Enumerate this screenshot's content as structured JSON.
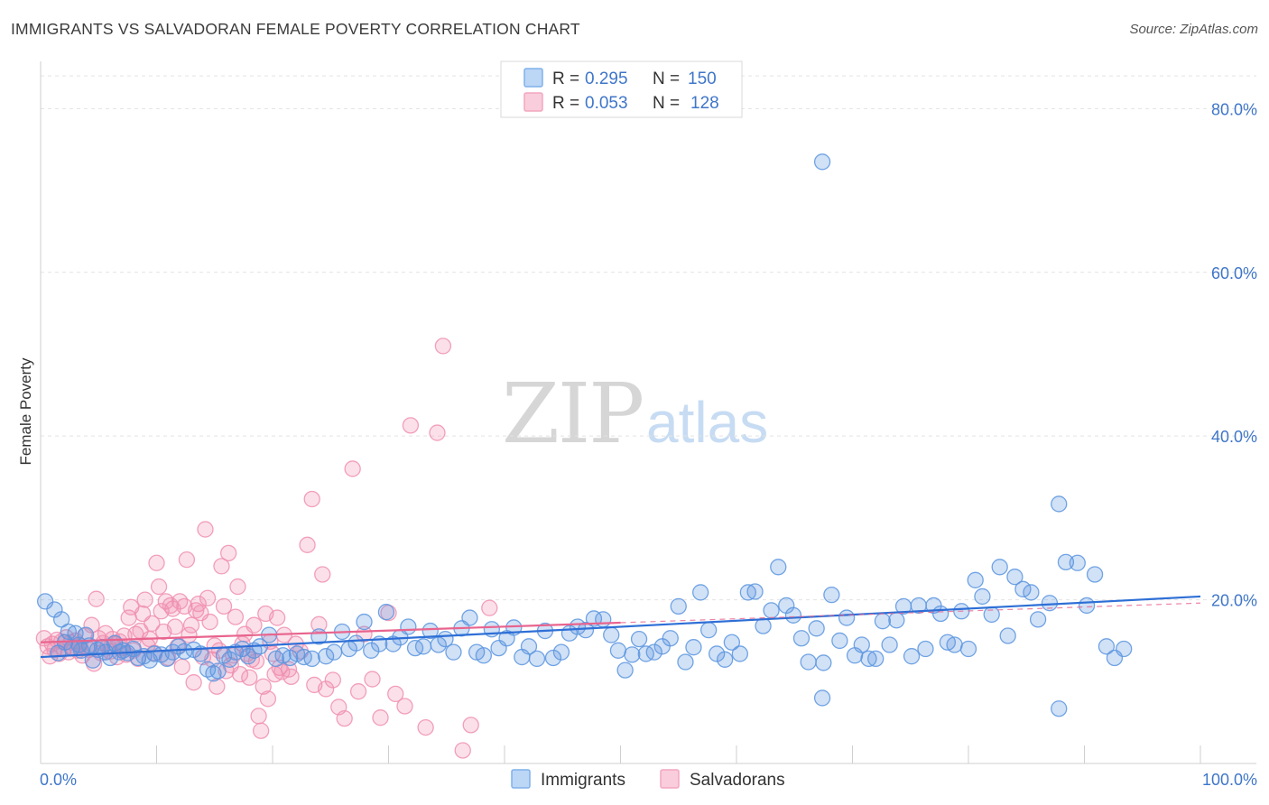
{
  "header": {
    "title": "IMMIGRANTS VS SALVADORAN FEMALE POVERTY CORRELATION CHART",
    "source": "Source: ZipAtlas.com"
  },
  "watermark": {
    "zip": "ZIP",
    "atlas": "atlas"
  },
  "legend": {
    "rows": [
      {
        "r_label": "R =",
        "r_value": "0.295",
        "n_label": "N =",
        "n_value": "150",
        "color": "#7fb1ea"
      },
      {
        "r_label": "R =",
        "r_value": "0.053",
        "n_label": "N =",
        "n_value": "128",
        "color": "#f4a6bf"
      }
    ]
  },
  "bottom_legend": {
    "items": [
      {
        "label": "Immigrants",
        "color": "#7fb1ea"
      },
      {
        "label": "Salvadorans",
        "color": "#f4a6bf"
      }
    ]
  },
  "colors": {
    "blue": "#5b95df",
    "pink": "#f08fb0",
    "blue_line": "#2e6fd6",
    "pink_line": "#e8648e",
    "grid": "#e3e3e3",
    "tick_text": "#3f76c9"
  },
  "chart_data": {
    "type": "scatter",
    "title": "IMMIGRANTS VS SALVADORAN FEMALE POVERTY CORRELATION CHART",
    "xlabel": "",
    "ylabel": "Female Poverty",
    "xlim": [
      0,
      100
    ],
    "ylim": [
      0,
      85
    ],
    "x_tick_labels": [
      "0.0%",
      "100.0%"
    ],
    "y_ticks": [
      20,
      40,
      60,
      80
    ],
    "y_tick_labels": [
      "20.0%",
      "40.0%",
      "60.0%",
      "80.0%"
    ],
    "grid": true,
    "legend_position": "top-center",
    "series": [
      {
        "name": "Immigrants",
        "color": "#5b95df",
        "r": 0.295,
        "n": 150,
        "trend": {
          "x": [
            0,
            100
          ],
          "y": [
            13.0,
            20.4
          ]
        },
        "points": [
          [
            0.4,
            19.8
          ],
          [
            1.2,
            18.8
          ],
          [
            1.5,
            13.5
          ],
          [
            1.8,
            17.6
          ],
          [
            2.1,
            14.8
          ],
          [
            2.4,
            16.1
          ],
          [
            2.7,
            14.1
          ],
          [
            3.0,
            15.9
          ],
          [
            3.3,
            14.5
          ],
          [
            3.5,
            13.8
          ],
          [
            3.9,
            15.7
          ],
          [
            4.2,
            14.4
          ],
          [
            4.5,
            12.6
          ],
          [
            4.9,
            13.9
          ],
          [
            5.3,
            14.2
          ],
          [
            5.6,
            13.6
          ],
          [
            6.0,
            12.9
          ],
          [
            6.4,
            14.7
          ],
          [
            6.8,
            13.6
          ],
          [
            7.1,
            13.8
          ],
          [
            7.5,
            13.5
          ],
          [
            8.0,
            14.0
          ],
          [
            8.4,
            12.9
          ],
          [
            8.9,
            13.1
          ],
          [
            9.4,
            12.6
          ],
          [
            9.8,
            13.4
          ],
          [
            10.4,
            13.3
          ],
          [
            10.9,
            12.8
          ],
          [
            11.4,
            13.6
          ],
          [
            11.9,
            14.3
          ],
          [
            12.4,
            13.7
          ],
          [
            13.2,
            13.9
          ],
          [
            13.8,
            13.4
          ],
          [
            14.4,
            11.5
          ],
          [
            14.9,
            11.0
          ],
          [
            15.3,
            11.3
          ],
          [
            15.8,
            13.2
          ],
          [
            16.3,
            12.7
          ],
          [
            16.8,
            13.6
          ],
          [
            17.4,
            14.0
          ],
          [
            17.9,
            13.1
          ],
          [
            18.4,
            13.8
          ],
          [
            18.9,
            14.3
          ],
          [
            19.7,
            15.7
          ],
          [
            20.3,
            12.8
          ],
          [
            20.9,
            13.2
          ],
          [
            21.5,
            12.9
          ],
          [
            22.1,
            13.4
          ],
          [
            22.7,
            13.0
          ],
          [
            23.4,
            12.8
          ],
          [
            24.0,
            15.5
          ],
          [
            24.6,
            13.1
          ],
          [
            25.3,
            13.6
          ],
          [
            26.0,
            16.1
          ],
          [
            26.6,
            14.0
          ],
          [
            27.2,
            14.7
          ],
          [
            27.9,
            17.3
          ],
          [
            28.5,
            13.8
          ],
          [
            29.2,
            14.6
          ],
          [
            29.8,
            18.5
          ],
          [
            30.4,
            14.6
          ],
          [
            31.0,
            15.4
          ],
          [
            31.7,
            16.7
          ],
          [
            32.3,
            14.1
          ],
          [
            33.0,
            14.3
          ],
          [
            33.6,
            16.2
          ],
          [
            34.3,
            14.5
          ],
          [
            34.9,
            15.2
          ],
          [
            35.6,
            13.6
          ],
          [
            36.3,
            16.5
          ],
          [
            37.0,
            17.8
          ],
          [
            37.6,
            13.6
          ],
          [
            38.2,
            13.2
          ],
          [
            38.9,
            16.4
          ],
          [
            39.5,
            14.1
          ],
          [
            40.2,
            15.3
          ],
          [
            40.8,
            16.6
          ],
          [
            41.5,
            13.0
          ],
          [
            42.1,
            14.3
          ],
          [
            42.8,
            12.8
          ],
          [
            43.5,
            16.2
          ],
          [
            44.2,
            12.9
          ],
          [
            44.9,
            13.6
          ],
          [
            45.6,
            15.9
          ],
          [
            46.3,
            16.7
          ],
          [
            47.0,
            16.3
          ],
          [
            47.7,
            17.7
          ],
          [
            48.5,
            17.6
          ],
          [
            49.2,
            15.7
          ],
          [
            49.8,
            13.8
          ],
          [
            50.4,
            11.4
          ],
          [
            51.0,
            13.3
          ],
          [
            51.6,
            15.2
          ],
          [
            52.2,
            13.4
          ],
          [
            52.9,
            13.6
          ],
          [
            53.6,
            14.3
          ],
          [
            54.3,
            15.3
          ],
          [
            55.0,
            19.2
          ],
          [
            55.6,
            12.4
          ],
          [
            56.3,
            14.2
          ],
          [
            56.9,
            20.9
          ],
          [
            57.6,
            16.3
          ],
          [
            58.3,
            13.4
          ],
          [
            59.0,
            12.7
          ],
          [
            59.6,
            14.8
          ],
          [
            60.3,
            13.4
          ],
          [
            61.0,
            20.9
          ],
          [
            61.6,
            21.0
          ],
          [
            62.3,
            16.8
          ],
          [
            63.0,
            18.7
          ],
          [
            63.6,
            24.0
          ],
          [
            64.3,
            19.3
          ],
          [
            64.9,
            18.1
          ],
          [
            65.6,
            15.3
          ],
          [
            66.2,
            12.4
          ],
          [
            66.9,
            16.5
          ],
          [
            67.5,
            12.3
          ],
          [
            68.2,
            20.6
          ],
          [
            68.9,
            15.0
          ],
          [
            69.5,
            17.8
          ],
          [
            70.2,
            13.2
          ],
          [
            70.8,
            14.5
          ],
          [
            71.4,
            12.8
          ],
          [
            72.0,
            12.8
          ],
          [
            72.6,
            17.4
          ],
          [
            73.2,
            14.5
          ],
          [
            73.8,
            17.5
          ],
          [
            74.4,
            19.2
          ],
          [
            75.1,
            13.1
          ],
          [
            75.7,
            19.3
          ],
          [
            76.3,
            14.0
          ],
          [
            77.0,
            19.3
          ],
          [
            77.6,
            18.3
          ],
          [
            78.2,
            14.8
          ],
          [
            78.8,
            14.5
          ],
          [
            79.4,
            18.6
          ],
          [
            80.0,
            14.0
          ],
          [
            80.6,
            22.4
          ],
          [
            81.2,
            20.4
          ],
          [
            82.0,
            18.2
          ],
          [
            82.7,
            24.0
          ],
          [
            83.4,
            15.6
          ],
          [
            84.0,
            22.8
          ],
          [
            84.7,
            21.3
          ],
          [
            85.4,
            20.9
          ],
          [
            86.0,
            17.6
          ],
          [
            87.0,
            19.6
          ],
          [
            87.8,
            31.7
          ],
          [
            88.4,
            24.6
          ],
          [
            89.4,
            24.5
          ],
          [
            90.2,
            19.3
          ],
          [
            90.9,
            23.1
          ],
          [
            91.9,
            14.3
          ],
          [
            92.6,
            12.9
          ],
          [
            93.4,
            14.0
          ],
          [
            67.4,
            8.0
          ],
          [
            87.8,
            6.7
          ],
          [
            67.4,
            73.5
          ]
        ]
      },
      {
        "name": "Salvadorans",
        "color": "#f08fb0",
        "r": 0.053,
        "n": 128,
        "trend": {
          "x": [
            0,
            50
          ],
          "y": [
            14.8,
            17.2
          ]
        },
        "trend_extension": {
          "x": [
            50,
            100
          ],
          "y": [
            17.2,
            19.6
          ]
        },
        "points": [
          [
            0.3,
            15.3
          ],
          [
            0.6,
            14.3
          ],
          [
            0.8,
            13.1
          ],
          [
            1.0,
            14.6
          ],
          [
            1.2,
            13.9
          ],
          [
            1.4,
            15.1
          ],
          [
            1.6,
            13.4
          ],
          [
            1.8,
            14.9
          ],
          [
            2.0,
            14.0
          ],
          [
            2.2,
            15.4
          ],
          [
            2.4,
            13.6
          ],
          [
            2.6,
            14.8
          ],
          [
            2.8,
            14.2
          ],
          [
            3.0,
            15.0
          ],
          [
            3.2,
            13.8
          ],
          [
            3.4,
            14.4
          ],
          [
            3.6,
            13.2
          ],
          [
            3.8,
            15.6
          ],
          [
            4.0,
            14.1
          ],
          [
            4.2,
            13.9
          ],
          [
            4.4,
            16.9
          ],
          [
            4.6,
            12.2
          ],
          [
            4.8,
            20.1
          ],
          [
            5.0,
            15.3
          ],
          [
            5.2,
            13.5
          ],
          [
            5.4,
            14.7
          ],
          [
            5.6,
            15.9
          ],
          [
            5.8,
            14.3
          ],
          [
            6.0,
            13.7
          ],
          [
            6.2,
            15.2
          ],
          [
            6.4,
            14.6
          ],
          [
            6.6,
            13.0
          ],
          [
            6.8,
            14.9
          ],
          [
            7.0,
            14.1
          ],
          [
            7.2,
            15.6
          ],
          [
            7.4,
            13.3
          ],
          [
            7.6,
            17.8
          ],
          [
            7.8,
            19.1
          ],
          [
            8.0,
            13.8
          ],
          [
            8.2,
            15.8
          ],
          [
            8.4,
            12.8
          ],
          [
            8.6,
            16.2
          ],
          [
            8.8,
            18.3
          ],
          [
            9.0,
            20.0
          ],
          [
            9.2,
            14.4
          ],
          [
            9.4,
            15.2
          ],
          [
            9.6,
            17.1
          ],
          [
            9.8,
            13.5
          ],
          [
            10.0,
            24.5
          ],
          [
            10.2,
            21.6
          ],
          [
            10.4,
            18.6
          ],
          [
            10.6,
            16.1
          ],
          [
            10.8,
            19.8
          ],
          [
            11.0,
            12.9
          ],
          [
            11.2,
            19.3
          ],
          [
            11.4,
            18.9
          ],
          [
            11.6,
            16.7
          ],
          [
            11.8,
            14.3
          ],
          [
            12.0,
            19.8
          ],
          [
            12.2,
            11.8
          ],
          [
            12.4,
            19.2
          ],
          [
            12.6,
            24.9
          ],
          [
            12.8,
            15.7
          ],
          [
            13.0,
            16.9
          ],
          [
            13.2,
            9.9
          ],
          [
            13.4,
            18.7
          ],
          [
            13.6,
            19.5
          ],
          [
            13.8,
            18.4
          ],
          [
            14.0,
            13.0
          ],
          [
            14.2,
            28.6
          ],
          [
            14.4,
            20.2
          ],
          [
            14.6,
            17.3
          ],
          [
            14.8,
            12.7
          ],
          [
            15.0,
            14.4
          ],
          [
            15.2,
            9.4
          ],
          [
            15.4,
            13.8
          ],
          [
            15.6,
            24.1
          ],
          [
            15.8,
            19.2
          ],
          [
            16.0,
            11.3
          ],
          [
            16.2,
            25.7
          ],
          [
            16.4,
            12.0
          ],
          [
            16.6,
            13.2
          ],
          [
            16.8,
            17.9
          ],
          [
            17.0,
            21.6
          ],
          [
            17.2,
            10.9
          ],
          [
            17.4,
            14.6
          ],
          [
            17.6,
            15.8
          ],
          [
            17.8,
            13.4
          ],
          [
            18.0,
            10.5
          ],
          [
            18.2,
            12.7
          ],
          [
            18.4,
            16.9
          ],
          [
            18.6,
            12.5
          ],
          [
            18.8,
            5.8
          ],
          [
            19.0,
            4.0
          ],
          [
            19.2,
            9.4
          ],
          [
            19.4,
            18.3
          ],
          [
            19.6,
            7.9
          ],
          [
            19.8,
            14.9
          ],
          [
            20.0,
            13.4
          ],
          [
            20.2,
            10.9
          ],
          [
            20.4,
            17.8
          ],
          [
            20.6,
            11.7
          ],
          [
            20.8,
            11.2
          ],
          [
            21.0,
            15.7
          ],
          [
            21.4,
            11.5
          ],
          [
            21.6,
            10.6
          ],
          [
            22.0,
            14.6
          ],
          [
            22.4,
            13.7
          ],
          [
            23.0,
            26.7
          ],
          [
            23.4,
            32.3
          ],
          [
            23.6,
            9.6
          ],
          [
            24.0,
            17.0
          ],
          [
            24.3,
            23.1
          ],
          [
            24.6,
            9.1
          ],
          [
            25.2,
            10.2
          ],
          [
            25.7,
            6.9
          ],
          [
            26.2,
            5.5
          ],
          [
            26.9,
            36.0
          ],
          [
            27.4,
            8.8
          ],
          [
            27.9,
            15.8
          ],
          [
            28.6,
            10.3
          ],
          [
            29.3,
            5.6
          ],
          [
            30.0,
            18.4
          ],
          [
            30.6,
            8.5
          ],
          [
            31.4,
            7.0
          ],
          [
            31.9,
            41.3
          ],
          [
            33.2,
            4.4
          ],
          [
            34.2,
            40.4
          ],
          [
            34.7,
            51.0
          ],
          [
            36.4,
            1.6
          ],
          [
            37.1,
            4.7
          ],
          [
            38.7,
            19.0
          ]
        ]
      }
    ]
  }
}
